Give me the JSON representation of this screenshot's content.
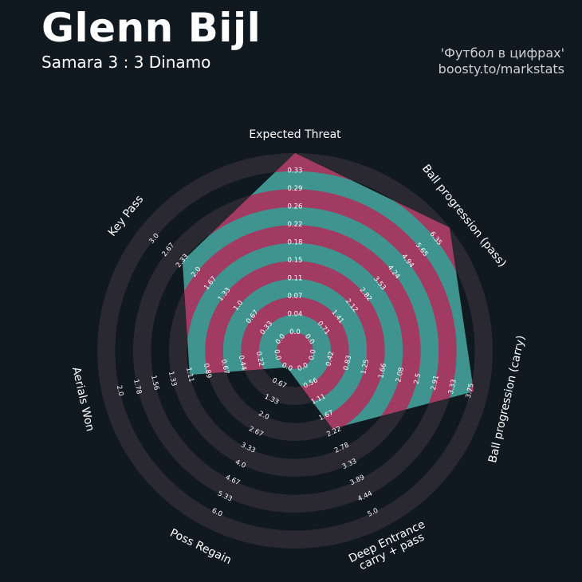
{
  "header": {
    "title": "Glenn Bijl",
    "subtitle": "Samara 3 : 3 Dinamo",
    "credit_line1": "'Футбол в цифрах'",
    "credit_line2": "boosty.to/markstats"
  },
  "colors": {
    "background": "#101820",
    "ring_background": "#2a2830",
    "ring_a": "#a23b62",
    "ring_b": "#3f948f"
  },
  "chart_data": {
    "type": "radar",
    "title": "Glenn Bijl",
    "subtitle": "Samara 3 : 3 Dinamo",
    "params": [
      {
        "label_lines": [
          "Expected Threat"
        ],
        "min": 0.0,
        "max": 0.33,
        "value": 0.33,
        "ticks": [
          "0.0",
          "0.04",
          "0.07",
          "0.11",
          "0.15",
          "0.18",
          "0.22",
          "0.26",
          "0.29",
          "0.33"
        ]
      },
      {
        "label_lines": [
          "Ball progression (pass)"
        ],
        "min": 0.0,
        "max": 6.35,
        "value": 6.35,
        "ticks": [
          "0.0",
          "0.71",
          "1.41",
          "2.12",
          "2.82",
          "3.53",
          "4.24",
          "4.94",
          "5.65",
          "6.35"
        ]
      },
      {
        "label_lines": [
          "Ball progression (carry)"
        ],
        "min": 0.0,
        "max": 3.75,
        "value": 3.45,
        "ticks": [
          "0.0",
          "0.42",
          "0.83",
          "1.25",
          "1.66",
          "2.08",
          "2.5",
          "2.91",
          "3.33",
          "3.75"
        ]
      },
      {
        "label_lines": [
          "Deep Entrance",
          "carry + pass"
        ],
        "min": 0.0,
        "max": 5.0,
        "value": 1.9,
        "ticks": [
          "0.0",
          "0.56",
          "1.11",
          "1.67",
          "2.22",
          "2.78",
          "3.33",
          "3.89",
          "4.44",
          "5.0"
        ]
      },
      {
        "label_lines": [
          "Poss Regain"
        ],
        "min": 0.0,
        "max": 6.0,
        "value": 0.0,
        "ticks": [
          "0.0",
          "0.67",
          "1.33",
          "2.0",
          "2.67",
          "3.33",
          "4.0",
          "4.67",
          "5.33",
          "6.0"
        ]
      },
      {
        "label_lines": [
          "Aerials Won"
        ],
        "min": 0.0,
        "max": 2.0,
        "value": 1.0,
        "ticks": [
          "0.0",
          "0.22",
          "0.44",
          "0.67",
          "0.89",
          "1.11",
          "1.33",
          "1.56",
          "1.78",
          "2.0"
        ]
      },
      {
        "label_lines": [
          "Key Pass"
        ],
        "min": 0.0,
        "max": 3.0,
        "value": 2.1,
        "ticks": [
          "0.0",
          "0.33",
          "0.67",
          "1.0",
          "1.33",
          "1.67",
          "2.0",
          "2.33",
          "2.67",
          "3.0"
        ]
      }
    ]
  }
}
